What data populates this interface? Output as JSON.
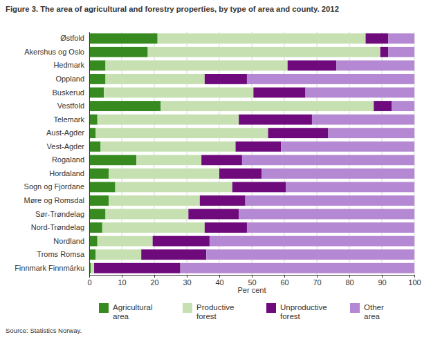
{
  "chart_data": {
    "type": "bar",
    "orientation": "horizontal",
    "stacked": true,
    "grid": true,
    "title": "Figure 3. The area of agricultural and forestry properties, by type of area and county. 2012",
    "xlabel": "Per cent",
    "source": "Source: Statistics Norway.",
    "categories": [
      "Østfold",
      "Akershus og Oslo",
      "Hedmark",
      "Oppland",
      "Buskerud",
      "Vestfold",
      "Telemark",
      "Aust-Agder",
      "Vest-Agder",
      "Rogaland",
      "Hordaland",
      "Sogn og Fjordane",
      "Møre og Romsdal",
      "Sør-Trøndelag",
      "Nord-Trøndelag",
      "Nordland",
      "Troms Romsa",
      "Finnmark Finnmárku"
    ],
    "series": [
      {
        "name": "Agricultural area",
        "color": "#368a1f",
        "values": [
          21,
          18,
          5,
          5,
          4.5,
          22,
          2.5,
          2,
          3.5,
          14.5,
          6,
          8,
          6,
          5,
          4,
          2.5,
          2,
          0.5
        ]
      },
      {
        "name": "Productive forest",
        "color": "#c6e0b2",
        "values": [
          64,
          71.5,
          56,
          30.5,
          46,
          65.5,
          43.5,
          53,
          41.5,
          20,
          34,
          36,
          28,
          25.5,
          31.5,
          17,
          14,
          1
        ]
      },
      {
        "name": "Unproductive forest",
        "color": "#6e0a7c",
        "values": [
          7,
          2.5,
          15,
          13,
          16,
          5.5,
          22.5,
          18.5,
          14,
          12.5,
          13,
          16.5,
          14,
          15.5,
          13,
          17.5,
          20,
          26.5
        ]
      },
      {
        "name": "Other area",
        "color": "#b488d2",
        "values": [
          8,
          8,
          24,
          51.5,
          33.5,
          7,
          31.5,
          26.5,
          41,
          53,
          47,
          39.5,
          52,
          54,
          51.5,
          63,
          64,
          72
        ]
      }
    ],
    "xlim": [
      0,
      100
    ],
    "xticks": [
      0,
      10,
      20,
      30,
      40,
      50,
      60,
      70,
      80,
      90,
      100
    ],
    "legend": "bottom"
  }
}
